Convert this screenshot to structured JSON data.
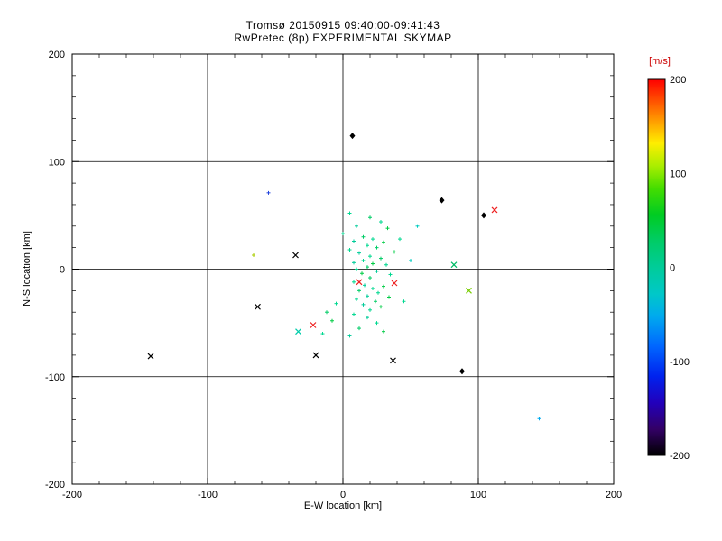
{
  "chart_data": {
    "type": "scatter",
    "title": "Tromsø 20150915 09:40:00-09:41:43",
    "subtitle": "RwPretec (8p) EXPERIMENTAL SKYMAP",
    "xlabel": "E-W location [km]",
    "ylabel": "N-S location [km]",
    "xlim": [
      -200,
      200
    ],
    "ylim": [
      -200,
      200
    ],
    "xticks": [
      -200,
      -100,
      0,
      100,
      200
    ],
    "yticks": [
      -200,
      -100,
      0,
      100,
      200
    ],
    "grid_x": [
      -100,
      0,
      100
    ],
    "grid_y": [
      -100,
      0,
      100
    ],
    "minor_tick_step": 20,
    "grid": true,
    "marker_legend": {
      "p": "small plus/dot",
      "x": "cross",
      "d": "diamond"
    },
    "colorbar": {
      "label": "[m/s]",
      "min": -200,
      "max": 200,
      "ticks": [
        200,
        100,
        0,
        -100,
        -200
      ],
      "stops": [
        [
          0,
          "#ff0000"
        ],
        [
          0.06,
          "#ff5500"
        ],
        [
          0.12,
          "#ffaa00"
        ],
        [
          0.17,
          "#ffee00"
        ],
        [
          0.23,
          "#aaee00"
        ],
        [
          0.29,
          "#44dd00"
        ],
        [
          0.36,
          "#00cc22"
        ],
        [
          0.43,
          "#00cc66"
        ],
        [
          0.5,
          "#00cc99"
        ],
        [
          0.57,
          "#00c8c8"
        ],
        [
          0.63,
          "#00aaee"
        ],
        [
          0.71,
          "#0066ff"
        ],
        [
          0.79,
          "#0022ee"
        ],
        [
          0.86,
          "#2200bb"
        ],
        [
          0.93,
          "#330066"
        ],
        [
          1,
          "#000000"
        ]
      ]
    },
    "points": [
      [
        7,
        124,
        "#000000",
        "d"
      ],
      [
        -55,
        71,
        "#2244dd",
        "p"
      ],
      [
        73,
        64,
        "#000000",
        "d"
      ],
      [
        112,
        55,
        "#ee2222",
        "x"
      ],
      [
        104,
        50,
        "#000000",
        "d"
      ],
      [
        82,
        4,
        "#00bb66",
        "x"
      ],
      [
        93,
        -20,
        "#77cc00",
        "x"
      ],
      [
        -35,
        13,
        "#000000",
        "x"
      ],
      [
        -66,
        13,
        "#aacc00",
        "p"
      ],
      [
        12,
        -12,
        "#ee2222",
        "x"
      ],
      [
        38,
        -13,
        "#ee2222",
        "x"
      ],
      [
        -63,
        -35,
        "#000000",
        "x"
      ],
      [
        -22,
        -52,
        "#ee2222",
        "x"
      ],
      [
        -33,
        -58,
        "#00ccaa",
        "x"
      ],
      [
        -20,
        -80,
        "#000000",
        "x"
      ],
      [
        -142,
        -81,
        "#000000",
        "x"
      ],
      [
        37,
        -85,
        "#000000",
        "x"
      ],
      [
        88,
        -95,
        "#000000",
        "d"
      ],
      [
        145,
        -139,
        "#00aaee",
        "p"
      ],
      [
        5,
        52,
        "#00d890",
        "p"
      ],
      [
        20,
        48,
        "#00cc66",
        "p"
      ],
      [
        28,
        44,
        "#00d890",
        "p"
      ],
      [
        10,
        40,
        "#00cc99",
        "p"
      ],
      [
        33,
        38,
        "#00cc44",
        "p"
      ],
      [
        0,
        33,
        "#00d890",
        "p"
      ],
      [
        15,
        30,
        "#00cc66",
        "p"
      ],
      [
        22,
        28,
        "#00d890",
        "p"
      ],
      [
        8,
        26,
        "#00cc99",
        "p"
      ],
      [
        30,
        25,
        "#00cc44",
        "p"
      ],
      [
        18,
        22,
        "#00d890",
        "p"
      ],
      [
        25,
        20,
        "#00cc66",
        "p"
      ],
      [
        5,
        18,
        "#00d890",
        "p"
      ],
      [
        12,
        15,
        "#00cc99",
        "p"
      ],
      [
        38,
        16,
        "#00cc44",
        "p"
      ],
      [
        20,
        12,
        "#00d890",
        "p"
      ],
      [
        28,
        10,
        "#00cc66",
        "p"
      ],
      [
        15,
        8,
        "#00d890",
        "p"
      ],
      [
        8,
        6,
        "#00cc99",
        "p"
      ],
      [
        22,
        5,
        "#00cc44",
        "p"
      ],
      [
        32,
        4,
        "#00d890",
        "p"
      ],
      [
        18,
        2,
        "#00cc66",
        "p"
      ],
      [
        10,
        0,
        "#00d890",
        "p"
      ],
      [
        25,
        -2,
        "#00cc99",
        "p"
      ],
      [
        14,
        -4,
        "#00cc44",
        "p"
      ],
      [
        35,
        -5,
        "#00d890",
        "p"
      ],
      [
        20,
        -8,
        "#00cc66",
        "p"
      ],
      [
        8,
        -12,
        "#00d890",
        "p"
      ],
      [
        16,
        -15,
        "#00cc99",
        "p"
      ],
      [
        30,
        -16,
        "#00cc44",
        "p"
      ],
      [
        22,
        -18,
        "#00d890",
        "p"
      ],
      [
        12,
        -20,
        "#00cc66",
        "p"
      ],
      [
        26,
        -22,
        "#00d890",
        "p"
      ],
      [
        18,
        -25,
        "#00cc99",
        "p"
      ],
      [
        34,
        -26,
        "#00cc44",
        "p"
      ],
      [
        10,
        -28,
        "#00d890",
        "p"
      ],
      [
        24,
        -30,
        "#00cc66",
        "p"
      ],
      [
        -5,
        -32,
        "#00d890",
        "p"
      ],
      [
        15,
        -33,
        "#00cc99",
        "p"
      ],
      [
        28,
        -35,
        "#00cc44",
        "p"
      ],
      [
        20,
        -38,
        "#00d890",
        "p"
      ],
      [
        -12,
        -40,
        "#00cc66",
        "p"
      ],
      [
        8,
        -42,
        "#00d890",
        "p"
      ],
      [
        18,
        -45,
        "#00cc99",
        "p"
      ],
      [
        -8,
        -48,
        "#00cc44",
        "p"
      ],
      [
        25,
        -50,
        "#00d890",
        "p"
      ],
      [
        12,
        -55,
        "#00cc66",
        "p"
      ],
      [
        -15,
        -60,
        "#00d890",
        "p"
      ],
      [
        30,
        -58,
        "#00cc44",
        "p"
      ],
      [
        5,
        -62,
        "#00cc99",
        "p"
      ],
      [
        45,
        -30,
        "#00d890",
        "p"
      ],
      [
        50,
        8,
        "#00ccc0",
        "p"
      ],
      [
        55,
        40,
        "#00ccc0",
        "p"
      ],
      [
        42,
        28,
        "#00d890",
        "p"
      ]
    ]
  }
}
